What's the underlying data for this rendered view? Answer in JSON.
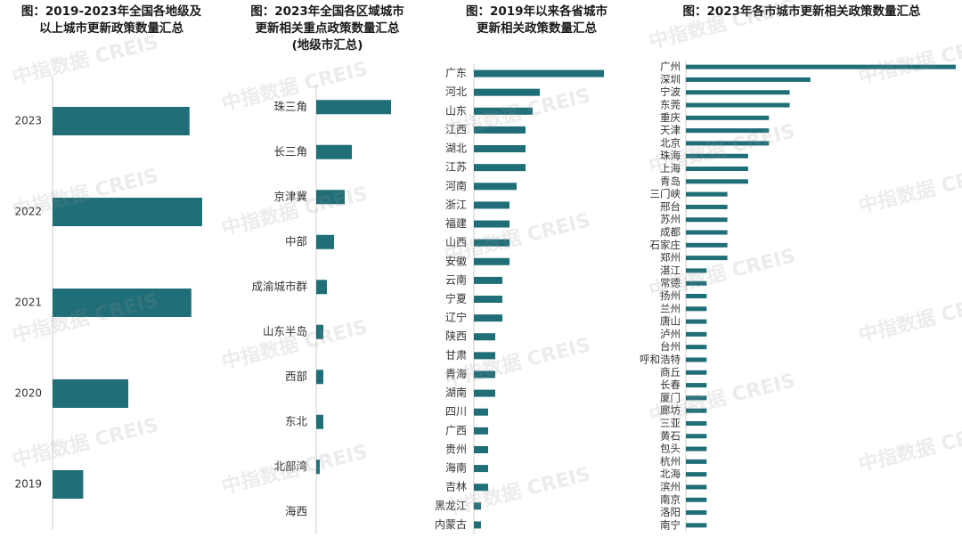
{
  "watermark": "中指数据 CREIS",
  "colors": {
    "bar": "#1f6e78",
    "axis": "#cfcfcf",
    "label": "#333333"
  },
  "chart_data": [
    {
      "type": "bar",
      "orientation": "horizontal",
      "title": "图：2019-2023年全国各地级及\n以上城市更新政策数量汇总",
      "categories": [
        "2023",
        "2022",
        "2021",
        "2020",
        "2019"
      ],
      "values": [
        76,
        83,
        77,
        42,
        17
      ],
      "xlim": [
        0,
        85
      ]
    },
    {
      "type": "bar",
      "orientation": "horizontal",
      "title": "图：2023年全国各区域城市\n更新相关重点政策数量汇总\n(地级市汇总)",
      "categories": [
        "珠三角",
        "长三角",
        "京津冀",
        "中部",
        "成渝城市群",
        "山东半岛",
        "西部",
        "东北",
        "北部湾",
        "海西"
      ],
      "values": [
        21,
        10,
        8,
        5,
        3,
        2,
        2,
        2,
        1,
        0
      ],
      "xlim": [
        0,
        30
      ]
    },
    {
      "type": "bar",
      "orientation": "horizontal",
      "title": "图：2019年以来各省城市\n更新相关政策数量汇总",
      "categories": [
        "广东",
        "河北",
        "山东",
        "江西",
        "湖北",
        "江苏",
        "河南",
        "浙江",
        "福建",
        "山西",
        "安徽",
        "云南",
        "宁夏",
        "辽宁",
        "陕西",
        "甘肃",
        "青海",
        "湖南",
        "四川",
        "广西",
        "贵州",
        "海南",
        "吉林",
        "黑龙江",
        "内蒙古"
      ],
      "values": [
        73,
        37,
        33,
        29,
        29,
        29,
        24,
        20,
        20,
        20,
        20,
        16,
        16,
        16,
        12,
        12,
        12,
        12,
        8,
        8,
        8,
        8,
        8,
        4,
        4
      ],
      "xlim": [
        0,
        80
      ]
    },
    {
      "type": "bar",
      "orientation": "horizontal",
      "title": "图：2023年各市城市更新相关政策数量汇总",
      "categories": [
        "广州",
        "深圳",
        "宁波",
        "东莞",
        "重庆",
        "天津",
        "北京",
        "珠海",
        "上海",
        "青岛",
        "三门峡",
        "邢台",
        "苏州",
        "成都",
        "石家庄",
        "郑州",
        "湛江",
        "常德",
        "扬州",
        "兰州",
        "唐山",
        "泸州",
        "台州",
        "呼和浩特",
        "商丘",
        "长春",
        "厦门",
        "廊坊",
        "三亚",
        "黄石",
        "包头",
        "杭州",
        "北海",
        "滨州",
        "南京",
        "洛阳",
        "南宁"
      ],
      "values": [
        13,
        6,
        5,
        5,
        4,
        4,
        4,
        3,
        3,
        3,
        2,
        2,
        2,
        2,
        2,
        2,
        1,
        1,
        1,
        1,
        1,
        1,
        1,
        1,
        1,
        1,
        1,
        1,
        1,
        1,
        1,
        1,
        1,
        1,
        1,
        1,
        1
      ],
      "xlim": [
        0,
        13
      ]
    }
  ]
}
